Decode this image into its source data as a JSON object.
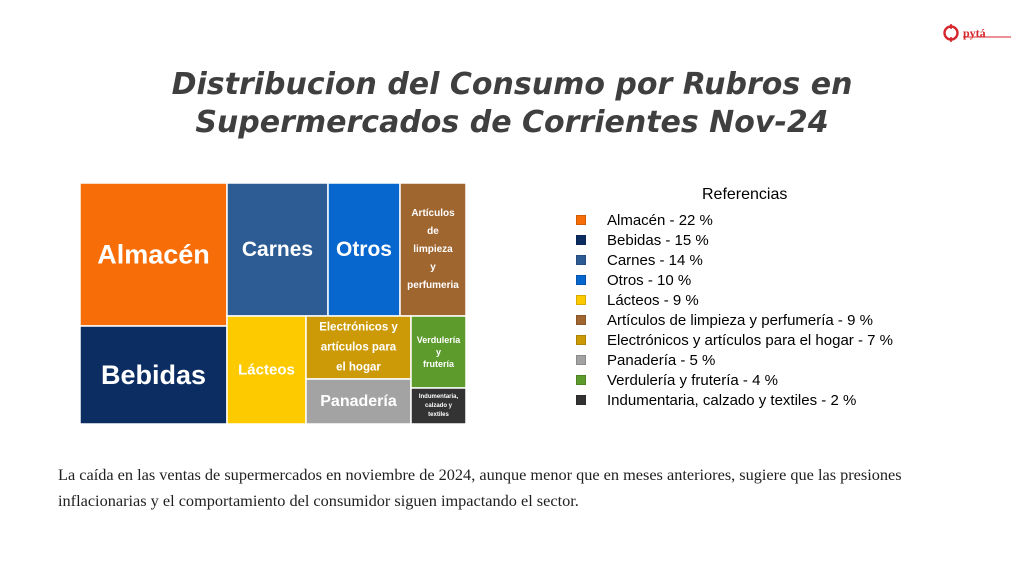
{
  "logo": {
    "text": "pytá"
  },
  "title": {
    "line1": "Distribucion del Consumo por Rubros en",
    "line2": "Supermercados de Corrientes Nov-24"
  },
  "chart_data": {
    "type": "treemap",
    "title": "Distribucion del Consumo por Rubros en Supermercados de Corrientes Nov-24",
    "unit": "%",
    "legend_title": "Referencias",
    "legend_position": "right",
    "items": [
      {
        "name": "Almacén",
        "value": 22,
        "color": "#f76d08",
        "tile_label": [
          "Almacén"
        ],
        "legend": "Almacén - 22 %"
      },
      {
        "name": "Bebidas",
        "value": 15,
        "color": "#0c2d62",
        "tile_label": [
          "Bebidas"
        ],
        "legend": "Bebidas - 15 %"
      },
      {
        "name": "Carnes",
        "value": 14,
        "color": "#2d5c94",
        "tile_label": [
          "Carnes"
        ],
        "legend": "Carnes - 14 %"
      },
      {
        "name": "Otros",
        "value": 10,
        "color": "#0866cf",
        "tile_label": [
          "Otros"
        ],
        "legend": "Otros - 10 %"
      },
      {
        "name": "Lácteos",
        "value": 9,
        "color": "#fdca00",
        "tile_label": [
          "Lácteos"
        ],
        "legend": "Lácteos - 9 %"
      },
      {
        "name": "Artículos de limpieza y perfumería",
        "value": 9,
        "color": "#a06630",
        "tile_label": [
          "Artículos",
          "de",
          "limpieza",
          "y",
          "perfumeria"
        ],
        "legend": "Artículos de limpieza y perfumería - 9 %"
      },
      {
        "name": "Electrónicos y artículos para el hogar",
        "value": 7,
        "color": "#cc9a06",
        "tile_label": [
          "Electrónicos y",
          "artículos para",
          "el hogar"
        ],
        "legend": "Electrónicos y artículos para el hogar - 7 %"
      },
      {
        "name": "Panadería",
        "value": 5,
        "color": "#a3a3a3",
        "tile_label": [
          "Panadería"
        ],
        "legend": "Panadería - 5 %"
      },
      {
        "name": "Verdulería y frutería",
        "value": 4,
        "color": "#5d9b2c",
        "tile_label": [
          "Verdulería",
          "y",
          "frutería"
        ],
        "legend": "Verdulería y frutería - 4 %"
      },
      {
        "name": "Indumentaria, calzado y textiles",
        "value": 2,
        "color": "#333333",
        "tile_label": [
          "Indumentaria,",
          "calzado y",
          "textiles"
        ],
        "legend": "Indumentaria, calzado y textiles - 2 %"
      }
    ]
  },
  "footer": {
    "text": "La caída en las ventas de supermercados en noviembre de 2024, aunque menor que en meses anteriores, sugiere que las presiones inflacionarias y el comportamiento del consumidor siguen impactando el sector."
  }
}
